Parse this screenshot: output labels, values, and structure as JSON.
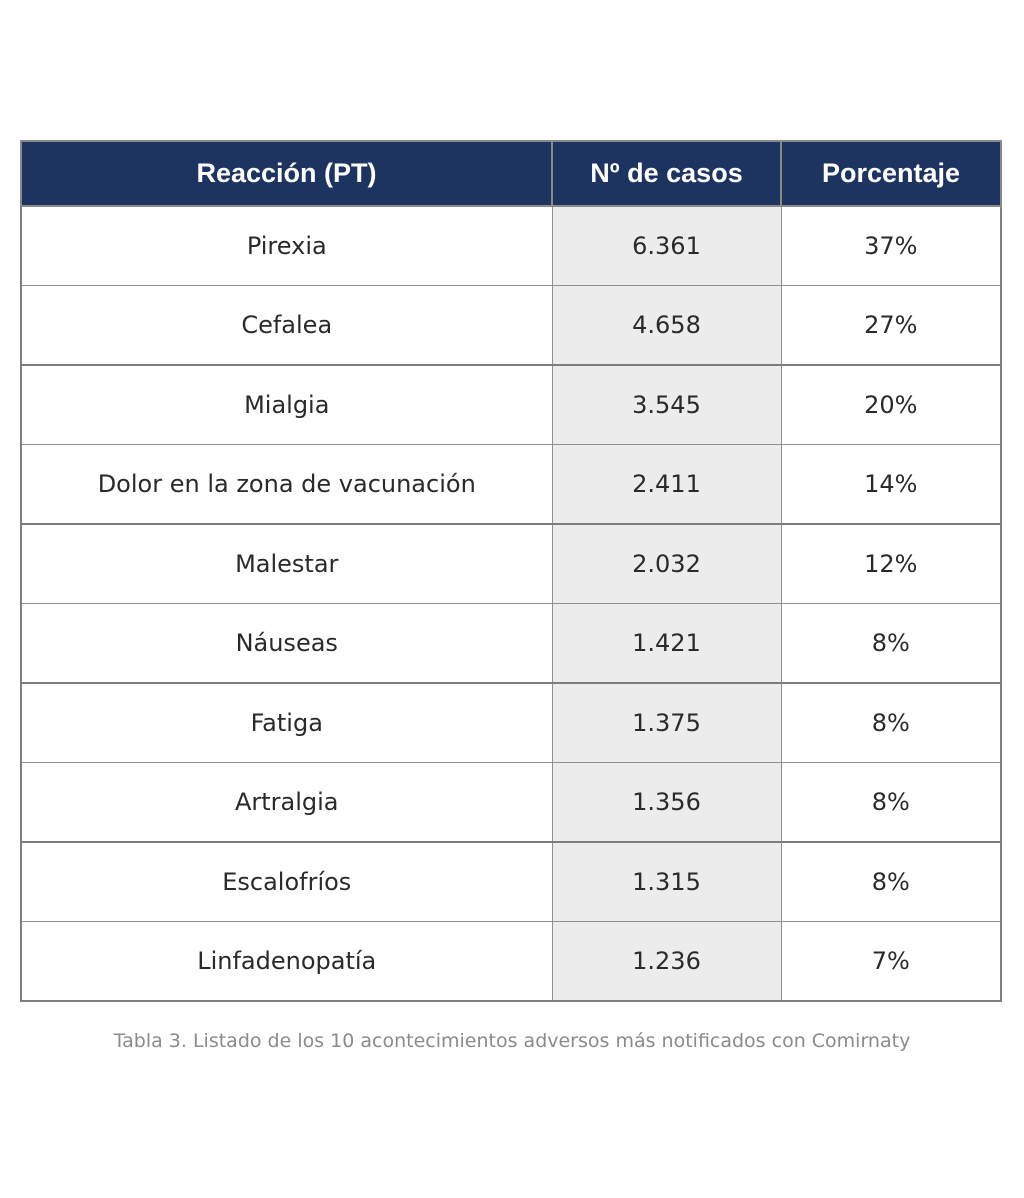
{
  "table": {
    "headers": [
      "Reacción (PT)",
      "Nº de casos",
      "Porcentaje"
    ],
    "rows": [
      {
        "reaction": "Pirexia",
        "cases": "6.361",
        "percent": "37%"
      },
      {
        "reaction": "Cefalea",
        "cases": "4.658",
        "percent": "27%"
      },
      {
        "reaction": "Mialgia",
        "cases": "3.545",
        "percent": "20%"
      },
      {
        "reaction": "Dolor en la zona de vacunación",
        "cases": "2.411",
        "percent": "14%"
      },
      {
        "reaction": "Malestar",
        "cases": "2.032",
        "percent": "12%"
      },
      {
        "reaction": "Náuseas",
        "cases": "1.421",
        "percent": "8%"
      },
      {
        "reaction": "Fatiga",
        "cases": "1.375",
        "percent": "8%"
      },
      {
        "reaction": "Artralgia",
        "cases": "1.356",
        "percent": "8%"
      },
      {
        "reaction": "Escalofríos",
        "cases": "1.315",
        "percent": "8%"
      },
      {
        "reaction": "Linfadenopatía",
        "cases": "1.236",
        "percent": "7%"
      }
    ],
    "header_color": "#1d3461",
    "cases_column_bg": "#ececec"
  },
  "caption": "Tabla 3. Listado de los 10 acontecimientos adversos más notificados con Comirnaty"
}
